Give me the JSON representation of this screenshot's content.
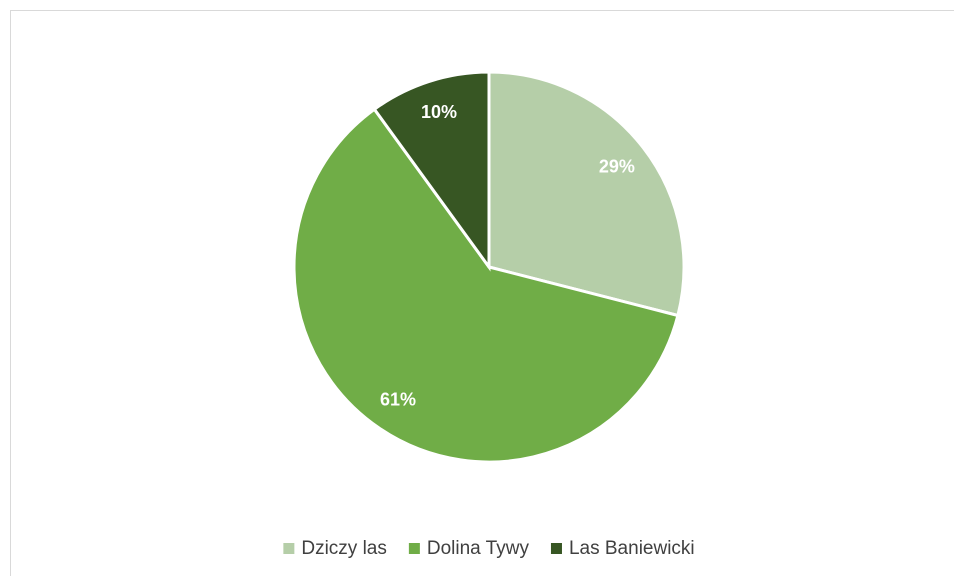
{
  "chart_data": {
    "type": "pie",
    "categories": [
      "Dziczy las",
      "Dolina Tywy",
      "Las Baniewicki"
    ],
    "values": [
      29,
      61,
      10
    ],
    "value_labels": [
      "29%",
      "61%",
      "10%"
    ],
    "colors": [
      "#b5cea8",
      "#70ad47",
      "#375623"
    ],
    "legend": "bottom"
  }
}
